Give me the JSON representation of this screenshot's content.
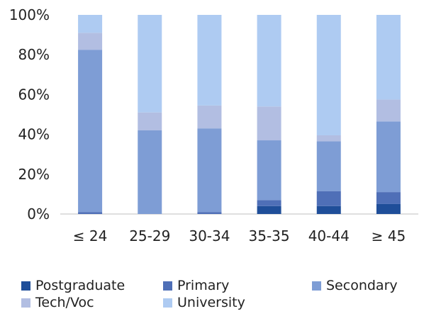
{
  "chart_data": {
    "type": "bar",
    "stacked": true,
    "categories": [
      "≤ 24",
      "25-29",
      "30-34",
      "35-35",
      "40-44",
      "≥ 45"
    ],
    "series": [
      {
        "name": "Postgraduate",
        "color": "#1F4E99",
        "values": [
          0,
          0,
          0,
          4,
          4,
          5
        ]
      },
      {
        "name": "Primary",
        "color": "#4F6FB7",
        "values": [
          1,
          0,
          1,
          3,
          7.5,
          6
        ]
      },
      {
        "name": "Secondary",
        "color": "#7E9DD5",
        "values": [
          81.5,
          42,
          42,
          30,
          25,
          35.5
        ]
      },
      {
        "name": "Tech/Voc",
        "color": "#B2BEE2",
        "values": [
          8.5,
          9,
          11.5,
          17,
          3,
          11
        ]
      },
      {
        "name": "University",
        "color": "#AECBF2",
        "values": [
          9,
          49,
          45.5,
          46,
          60.5,
          42.5
        ]
      }
    ],
    "yticks": [
      "0%",
      "20%",
      "40%",
      "60%",
      "80%",
      "100%"
    ],
    "ylim": [
      0,
      100
    ],
    "grid": false,
    "legend_position": "bottom"
  }
}
